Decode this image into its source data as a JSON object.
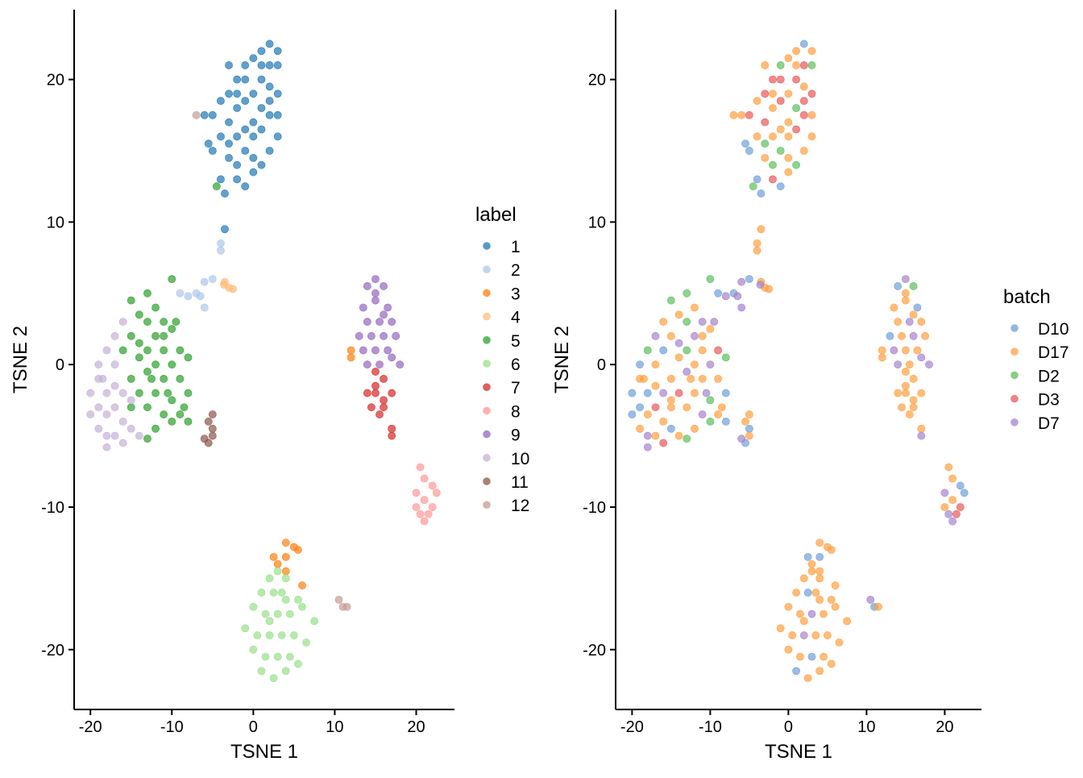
{
  "chart_data": [
    {
      "type": "scatter",
      "xlabel": "TSNE 1",
      "ylabel": "TSNE 2",
      "xlim": [
        -22,
        24.7
      ],
      "ylim": [
        -24.2,
        24.9
      ],
      "xticks": [
        -20,
        -10,
        0,
        10,
        20
      ],
      "xtick_labels": [
        "-20",
        "-10",
        "0",
        "10",
        "20"
      ],
      "yticks": [
        -20,
        -10,
        0,
        10,
        20
      ],
      "ytick_labels": [
        "-20",
        "-10",
        "0",
        "10",
        "20"
      ],
      "grid": false,
      "color_by": "label",
      "legend": {
        "title": "label",
        "placement": "right",
        "entries": [
          "1",
          "2",
          "3",
          "4",
          "5",
          "6",
          "7",
          "8",
          "9",
          "10",
          "11",
          "12"
        ],
        "colors": [
          "#1f77b4",
          "#aec7e8",
          "#ff7f0e",
          "#ffbb78",
          "#2ca02c",
          "#98df8a",
          "#d62728",
          "#ff9896",
          "#9467bd",
          "#c5b0d5",
          "#8c564b",
          "#c49c94"
        ]
      }
    },
    {
      "type": "scatter",
      "xlabel": "TSNE 1",
      "ylabel": "TSNE 2",
      "xlim": [
        -22.1,
        24.7
      ],
      "ylim": [
        -24.2,
        24.9
      ],
      "xticks": [
        -20,
        -10,
        0,
        10,
        20
      ],
      "xtick_labels": [
        "-20",
        "-10",
        "0",
        "10",
        "20"
      ],
      "yticks": [
        -20,
        -10,
        0,
        10,
        20
      ],
      "ytick_labels": [
        "-20",
        "-10",
        "0",
        "10",
        "20"
      ],
      "grid": false,
      "color_by": "batch",
      "legend": {
        "title": "batch",
        "placement": "right",
        "entries": [
          "D10",
          "D17",
          "D2",
          "D3",
          "D7"
        ],
        "colors": [
          "#6f9fd8",
          "#ff9f40",
          "#5cbf5c",
          "#e8585a",
          "#a583cc"
        ]
      }
    }
  ],
  "points": [
    [
      -4,
      13,
      1,
      "D10"
    ],
    [
      -3,
      14.5,
      1,
      "D17"
    ],
    [
      -2,
      13,
      1,
      "D3"
    ],
    [
      -1,
      12.5,
      1,
      "D10"
    ],
    [
      0,
      13.5,
      1,
      "D17"
    ],
    [
      1,
      14,
      1,
      "D2"
    ],
    [
      -5,
      15,
      1,
      "D10"
    ],
    [
      -4,
      16,
      1,
      "D17"
    ],
    [
      -3,
      17,
      1,
      "D3"
    ],
    [
      -2,
      16,
      1,
      "D17"
    ],
    [
      -1,
      15,
      1,
      "D2"
    ],
    [
      0,
      16,
      1,
      "D17"
    ],
    [
      1,
      16.5,
      1,
      "D3"
    ],
    [
      2,
      15,
      1,
      "D17"
    ],
    [
      -3,
      19,
      1,
      "D3"
    ],
    [
      -2,
      18,
      1,
      "D17"
    ],
    [
      -1,
      18.5,
      1,
      "D3"
    ],
    [
      0,
      19,
      1,
      "D17"
    ],
    [
      1,
      18,
      1,
      "D2"
    ],
    [
      2,
      17.5,
      1,
      "D3"
    ],
    [
      3,
      16,
      1,
      "D17"
    ],
    [
      -3,
      21,
      1,
      "D17"
    ],
    [
      -2,
      20,
      1,
      "D3"
    ],
    [
      -1,
      21,
      1,
      "D2"
    ],
    [
      0,
      21.5,
      1,
      "D17"
    ],
    [
      1,
      20,
      1,
      "D3"
    ],
    [
      2,
      19.5,
      1,
      "D17"
    ],
    [
      3,
      19,
      1,
      "D3"
    ],
    [
      1,
      22,
      1,
      "D17"
    ],
    [
      2,
      22.5,
      1,
      "D10"
    ],
    [
      3,
      22,
      1,
      "D17"
    ],
    [
      3,
      21,
      1,
      "D2"
    ],
    [
      -5,
      17.5,
      1,
      "D3"
    ],
    [
      -6,
      17.5,
      1,
      "D17"
    ],
    [
      -4,
      18.5,
      1,
      "D17"
    ],
    [
      2,
      21,
      1,
      "D3"
    ],
    [
      0,
      17,
      1,
      "D17"
    ],
    [
      -2,
      14,
      1,
      "D2"
    ],
    [
      3,
      17.5,
      1,
      "D17"
    ],
    [
      -1,
      20,
      1,
      "D3"
    ],
    [
      -3.5,
      12,
      1,
      "D10"
    ],
    [
      -5.5,
      15.5,
      1,
      "D10"
    ],
    [
      -3,
      15.5,
      1,
      "D2"
    ],
    [
      0,
      14.5,
      1,
      "D17"
    ],
    [
      -1,
      16.5,
      1,
      "D17"
    ],
    [
      2,
      18.5,
      1,
      "D3"
    ],
    [
      -2,
      19,
      1,
      "D17"
    ],
    [
      1,
      21,
      1,
      "D17"
    ],
    [
      -7,
      17.5,
      12,
      "D17"
    ],
    [
      -4.5,
      12.5,
      5,
      "D2"
    ],
    [
      -3.5,
      9.5,
      1,
      "D17"
    ],
    [
      -4,
      8.5,
      2,
      "D17"
    ],
    [
      -4,
      8,
      2,
      "D17"
    ],
    [
      -5,
      6,
      2,
      "D10"
    ],
    [
      -6,
      5.8,
      2,
      "D7"
    ],
    [
      -7,
      5,
      2,
      "D10"
    ],
    [
      -6.5,
      4.8,
      2,
      "D7"
    ],
    [
      -9,
      5,
      2,
      "D10"
    ],
    [
      -8,
      4.8,
      2,
      "D7"
    ],
    [
      -6,
      4,
      2,
      "D7"
    ],
    [
      -3.5,
      5.8,
      4,
      "D17"
    ],
    [
      -3,
      5.4,
      4,
      "D17"
    ],
    [
      -3.6,
      5.6,
      4,
      "D7"
    ],
    [
      -2.5,
      5.3,
      4,
      "D17"
    ],
    [
      -10,
      6,
      5,
      "D2"
    ],
    [
      -13,
      5,
      5,
      "D2"
    ],
    [
      -15,
      4.5,
      5,
      "D2"
    ],
    [
      -12,
      4,
      5,
      "D17"
    ],
    [
      -14,
      3.5,
      5,
      "D17"
    ],
    [
      -11,
      3,
      5,
      "D7"
    ],
    [
      -13,
      3,
      5,
      "D2"
    ],
    [
      -15,
      2,
      5,
      "D17"
    ],
    [
      -12,
      2,
      5,
      "D7"
    ],
    [
      -10,
      2.5,
      5,
      "D17"
    ],
    [
      -9,
      1,
      5,
      "D3"
    ],
    [
      -11,
      1,
      5,
      "D17"
    ],
    [
      -13,
      1,
      5,
      "D2"
    ],
    [
      -14,
      0.5,
      5,
      "D17"
    ],
    [
      -16,
      1,
      5,
      "D10"
    ],
    [
      -12,
      0,
      5,
      "D17"
    ],
    [
      -10,
      0,
      5,
      "D7"
    ],
    [
      -8,
      0.5,
      5,
      "D2"
    ],
    [
      -15,
      -1,
      5,
      "D17"
    ],
    [
      -13,
      -0.5,
      5,
      "D7"
    ],
    [
      -11,
      -1,
      5,
      "D17"
    ],
    [
      -9,
      -1,
      5,
      "D17"
    ],
    [
      -14,
      -2,
      5,
      "D3"
    ],
    [
      -12,
      -2,
      5,
      "D17"
    ],
    [
      -10,
      -2.5,
      5,
      "D2"
    ],
    [
      -8,
      -2,
      5,
      "D10"
    ],
    [
      -13,
      -3,
      5,
      "D17"
    ],
    [
      -11,
      -3.5,
      5,
      "D7"
    ],
    [
      -9,
      -3.5,
      5,
      "D17"
    ],
    [
      -8,
      -4,
      5,
      "D10"
    ],
    [
      -12,
      -4.5,
      5,
      "D17"
    ],
    [
      -10,
      -4,
      5,
      "D2"
    ],
    [
      -13,
      -5.2,
      5,
      "D2"
    ],
    [
      -15,
      -3,
      5,
      "D17"
    ],
    [
      -14,
      1.5,
      5,
      "D7"
    ],
    [
      -11,
      2,
      5,
      "D17"
    ],
    [
      -9.5,
      3,
      5,
      "D7"
    ],
    [
      -12.5,
      -1,
      5,
      "D17"
    ],
    [
      -10.5,
      -2,
      5,
      "D7"
    ],
    [
      -8.5,
      -3,
      5,
      "D17"
    ],
    [
      -19,
      0,
      10,
      "D10"
    ],
    [
      -18,
      1,
      10,
      "D2"
    ],
    [
      -17,
      2,
      10,
      "D7"
    ],
    [
      -16,
      3,
      10,
      "D17"
    ],
    [
      -19,
      -1,
      10,
      "D17"
    ],
    [
      -18,
      -2,
      10,
      "D10"
    ],
    [
      -17,
      -1.5,
      10,
      "D17"
    ],
    [
      -16,
      -2,
      10,
      "D7"
    ],
    [
      -15,
      -2.5,
      10,
      "D17"
    ],
    [
      -19,
      -3,
      10,
      "D10"
    ],
    [
      -18,
      -3.5,
      10,
      "D17"
    ],
    [
      -17,
      -3,
      10,
      "D3"
    ],
    [
      -16,
      -4,
      10,
      "D17"
    ],
    [
      -15,
      -4.5,
      10,
      "D10"
    ],
    [
      -19,
      -4.5,
      10,
      "D17"
    ],
    [
      -18,
      -5,
      10,
      "D7"
    ],
    [
      -17,
      -5,
      10,
      "D17"
    ],
    [
      -16,
      -5.5,
      10,
      "D3"
    ],
    [
      -18,
      -5.8,
      10,
      "D7"
    ],
    [
      -20,
      -2,
      10,
      "D10"
    ],
    [
      -20,
      -3.5,
      10,
      "D10"
    ],
    [
      -14,
      -5,
      10,
      "D17"
    ],
    [
      -17,
      0,
      10,
      "D17"
    ],
    [
      -18.5,
      -1,
      10,
      "D17"
    ],
    [
      -5.5,
      -4,
      11,
      "D17"
    ],
    [
      -5,
      -4.5,
      11,
      "D10"
    ],
    [
      -5,
      -5,
      11,
      "D17"
    ],
    [
      -5.5,
      -5.5,
      11,
      "D10"
    ],
    [
      -5,
      -3.5,
      11,
      "D17"
    ],
    [
      -6,
      -5.2,
      11,
      "D7"
    ],
    [
      14,
      5.5,
      9,
      "D10"
    ],
    [
      15,
      6,
      9,
      "D7"
    ],
    [
      16,
      5.5,
      9,
      "D2"
    ],
    [
      13.5,
      4,
      9,
      "D17"
    ],
    [
      15,
      4.5,
      9,
      "D17"
    ],
    [
      16.5,
      4,
      9,
      "D10"
    ],
    [
      14,
      3,
      9,
      "D17"
    ],
    [
      15.5,
      3,
      9,
      "D7"
    ],
    [
      17,
      3,
      9,
      "D17"
    ],
    [
      13,
      2,
      9,
      "D10"
    ],
    [
      14.5,
      2,
      9,
      "D17"
    ],
    [
      16,
      2,
      9,
      "D7"
    ],
    [
      17.5,
      2,
      9,
      "D17"
    ],
    [
      13.5,
      1,
      9,
      "D7"
    ],
    [
      15,
      1,
      9,
      "D17"
    ],
    [
      16.5,
      1,
      9,
      "D17"
    ],
    [
      14,
      0,
      9,
      "D7"
    ],
    [
      15.5,
      0,
      9,
      "D17"
    ],
    [
      17,
      0.5,
      9,
      "D7"
    ],
    [
      18,
      0,
      9,
      "D7"
    ],
    [
      15,
      5,
      9,
      "D17"
    ],
    [
      16,
      3.5,
      9,
      "D17"
    ],
    [
      12,
      1,
      3,
      "D17"
    ],
    [
      12,
      0.5,
      3,
      "D17"
    ],
    [
      4,
      -12.5,
      3,
      "D17"
    ],
    [
      5,
      -12.8,
      3,
      "D17"
    ],
    [
      5.5,
      -13,
      3,
      "D17"
    ],
    [
      4,
      -13.5,
      3,
      "D10"
    ],
    [
      3,
      -14,
      3,
      "D17"
    ],
    [
      4,
      -14.5,
      3,
      "D17"
    ],
    [
      2.5,
      -13.5,
      3,
      "D10"
    ],
    [
      6,
      -15.5,
      3,
      "D17"
    ],
    [
      15,
      -0.5,
      7,
      "D17"
    ],
    [
      16,
      -1,
      7,
      "D17"
    ],
    [
      14,
      -2,
      7,
      "D17"
    ],
    [
      15,
      -2,
      7,
      "D17"
    ],
    [
      16,
      -2.5,
      7,
      "D17"
    ],
    [
      17,
      -2,
      7,
      "D17"
    ],
    [
      14.5,
      -3,
      7,
      "D17"
    ],
    [
      15.5,
      -3.5,
      7,
      "D17"
    ],
    [
      16,
      -3,
      7,
      "D17"
    ],
    [
      15,
      -1.5,
      7,
      "D17"
    ],
    [
      17,
      -4.5,
      7,
      "D17"
    ],
    [
      17,
      -5,
      7,
      "D7"
    ],
    [
      20.5,
      -7.2,
      8,
      "D17"
    ],
    [
      21,
      -8,
      8,
      "D17"
    ],
    [
      22,
      -8.5,
      8,
      "D10"
    ],
    [
      20,
      -9,
      8,
      "D7"
    ],
    [
      21,
      -9.5,
      8,
      "D17"
    ],
    [
      22.5,
      -9,
      8,
      "D10"
    ],
    [
      20.5,
      -10.5,
      8,
      "D7"
    ],
    [
      21.5,
      -10.5,
      8,
      "D3"
    ],
    [
      22,
      -10,
      8,
      "D3"
    ],
    [
      21,
      -11,
      8,
      "D7"
    ],
    [
      20,
      -10,
      8,
      "D17"
    ],
    [
      2,
      -15,
      6,
      "D17"
    ],
    [
      3,
      -14.5,
      6,
      "D17"
    ],
    [
      4,
      -15,
      6,
      "D17"
    ],
    [
      1,
      -16,
      6,
      "D17"
    ],
    [
      2.5,
      -16,
      6,
      "D10"
    ],
    [
      4,
      -16.5,
      6,
      "D17"
    ],
    [
      5.5,
      -16.5,
      6,
      "D17"
    ],
    [
      0,
      -17,
      6,
      "D17"
    ],
    [
      1.5,
      -17.5,
      6,
      "D17"
    ],
    [
      3,
      -17.5,
      6,
      "D7"
    ],
    [
      4.5,
      -17.5,
      6,
      "D17"
    ],
    [
      6,
      -17,
      6,
      "D17"
    ],
    [
      7.5,
      -18,
      6,
      "D17"
    ],
    [
      -1,
      -18.5,
      6,
      "D17"
    ],
    [
      0.5,
      -19,
      6,
      "D17"
    ],
    [
      2,
      -19,
      6,
      "D7"
    ],
    [
      3.5,
      -19,
      6,
      "D17"
    ],
    [
      5,
      -19,
      6,
      "D17"
    ],
    [
      6.5,
      -19.5,
      6,
      "D17"
    ],
    [
      0,
      -20,
      6,
      "D17"
    ],
    [
      1.5,
      -20.5,
      6,
      "D17"
    ],
    [
      3,
      -20.5,
      6,
      "D10"
    ],
    [
      4.5,
      -20.5,
      6,
      "D17"
    ],
    [
      1,
      -21.5,
      6,
      "D10"
    ],
    [
      2.5,
      -22,
      6,
      "D17"
    ],
    [
      4,
      -21.5,
      6,
      "D17"
    ],
    [
      5.5,
      -21,
      6,
      "D17"
    ],
    [
      2,
      -18,
      6,
      "D17"
    ],
    [
      3.5,
      -16,
      6,
      "D17"
    ],
    [
      10.5,
      -16.5,
      12,
      "D7"
    ],
    [
      11,
      -17,
      12,
      "D10"
    ],
    [
      11.5,
      -17,
      12,
      "D17"
    ]
  ]
}
